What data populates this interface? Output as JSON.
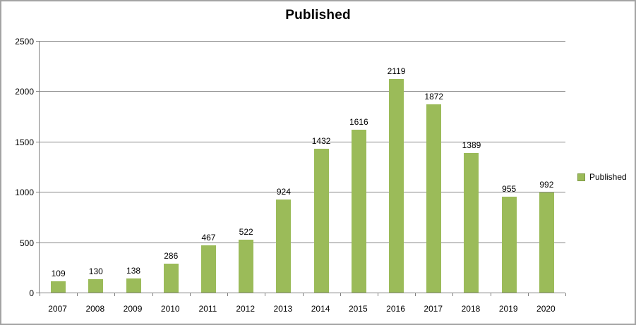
{
  "window": {
    "background_color": "#FFFFFF",
    "border_color": "#A3A3A3"
  },
  "chart_data": {
    "type": "bar",
    "title": "Published",
    "categories": [
      "2007",
      "2008",
      "2009",
      "2010",
      "2011",
      "2012",
      "2013",
      "2014",
      "2015",
      "2016",
      "2017",
      "2018",
      "2019",
      "2020"
    ],
    "series": [
      {
        "name": "Published",
        "values": [
          109,
          130,
          138,
          286,
          467,
          522,
          924,
          1432,
          1616,
          2119,
          1872,
          1389,
          955,
          992
        ]
      }
    ],
    "xlabel": "",
    "ylabel": "",
    "ylim": [
      0,
      2500
    ],
    "ytick_interval": 500,
    "ytick_labels": [
      "0",
      "500",
      "1000",
      "1500",
      "2000",
      "2500"
    ],
    "grid": "horizontal",
    "data_labels": true,
    "legend_position": "right",
    "bar_color": "#9BBB59",
    "gridline_color": "#878787",
    "axis_color": "#808080",
    "text_color": "#000000"
  },
  "legend": {
    "items": [
      {
        "label": "Published",
        "color": "#9BBB59"
      }
    ]
  }
}
